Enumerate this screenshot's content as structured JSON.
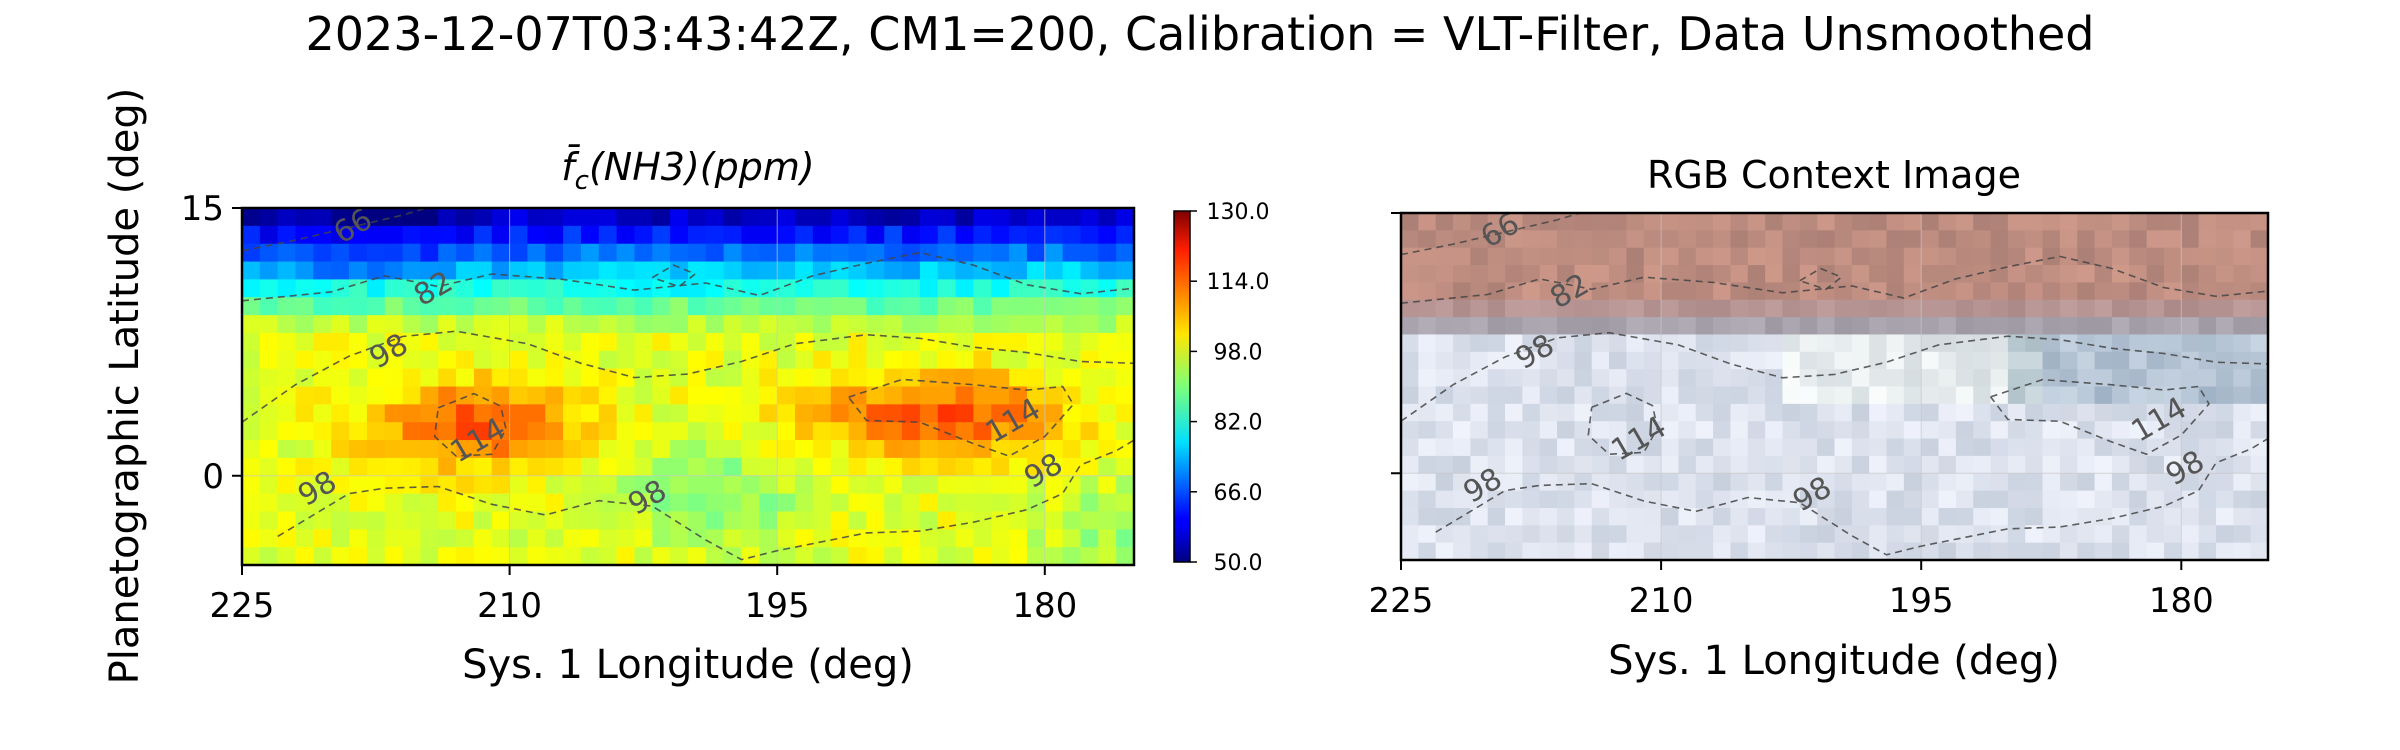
{
  "figure": {
    "suptitle": "2023-12-07T03:43:42Z, CM1=200, Calibration = VLT-Filter, Data Unsmoothed"
  },
  "chart_data": [
    {
      "type": "heatmap",
      "title_symbol": "f̄",
      "title_subscript": "c",
      "title_rest": "(NH3)(ppm)",
      "xlabel": "Sys. 1 Longitude (deg)",
      "ylabel": "Planetographic Latitude (deg)",
      "xlim": [
        225,
        175
      ],
      "ylim": [
        -5,
        15
      ],
      "xticks": [
        225,
        210,
        195,
        180
      ],
      "yticks": [
        0,
        15
      ],
      "grid": true,
      "colormap": "jet",
      "color_range": [
        50,
        130
      ],
      "colorbar_ticks": [
        "50.0",
        "66.0",
        "82.0",
        "98.0",
        "114.0",
        "130.0"
      ],
      "contour_levels": [
        66,
        82,
        98,
        114
      ],
      "contour_labels": [
        {
          "text": "66",
          "lon": 218.5,
          "lat": 13.5
        },
        {
          "text": "82",
          "lon": 214,
          "lat": 10
        },
        {
          "text": "98",
          "lon": 216.5,
          "lat": 6.5
        },
        {
          "text": "114",
          "lon": 211.5,
          "lat": 1.5
        },
        {
          "text": "98",
          "lon": 220.5,
          "lat": -1.2
        },
        {
          "text": "98",
          "lon": 202,
          "lat": -1.7
        },
        {
          "text": "114",
          "lon": 181.5,
          "lat": 2.6
        },
        {
          "text": "98",
          "lon": 179.8,
          "lat": -0.2
        }
      ]
    },
    {
      "type": "image",
      "title": "RGB Context Image",
      "xlabel": "Sys. 1 Longitude (deg)",
      "xlim": [
        225,
        175
      ],
      "ylim": [
        -5,
        15
      ],
      "xticks": [
        225,
        210,
        195,
        180
      ],
      "grid": true,
      "contour_labels": [
        {
          "text": "66",
          "lon": 219,
          "lat": 13.5
        },
        {
          "text": "82",
          "lon": 215,
          "lat": 10
        },
        {
          "text": "98",
          "lon": 217,
          "lat": 6.5
        },
        {
          "text": "114",
          "lon": 211,
          "lat": 1.5
        },
        {
          "text": "98",
          "lon": 220,
          "lat": -1.2
        },
        {
          "text": "98",
          "lon": 201,
          "lat": -1.7
        },
        {
          "text": "114",
          "lon": 181,
          "lat": 2.6
        },
        {
          "text": "98",
          "lon": 179.5,
          "lat": -0.2
        }
      ]
    }
  ]
}
